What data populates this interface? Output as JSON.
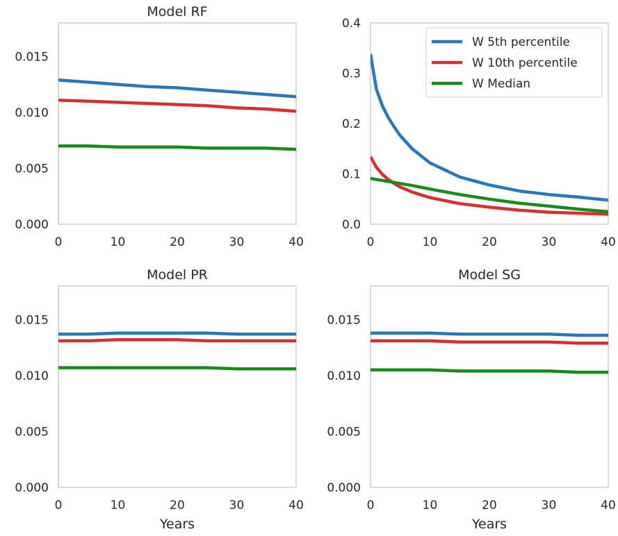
{
  "colors": {
    "w_5th": "#2878b5",
    "w_10th": "#d62f2f",
    "w_median": "#178a17"
  },
  "chart_data": [
    {
      "type": "line",
      "title": "Model RF",
      "xlabel": "",
      "ylabel": "",
      "xlim": [
        0,
        40
      ],
      "ylim": [
        0,
        0.018
      ],
      "xticks": [
        "0",
        "10",
        "20",
        "30",
        "40"
      ],
      "yticks": [
        "0.000",
        "0.005",
        "0.010",
        "0.015"
      ],
      "grid": false,
      "legend": null,
      "x": [
        0,
        5,
        10,
        15,
        20,
        25,
        30,
        35,
        40
      ],
      "series": [
        {
          "name": "W 5th percentile",
          "color": "#2878b5",
          "values": [
            0.0129,
            0.0127,
            0.0125,
            0.0123,
            0.0122,
            0.012,
            0.0118,
            0.0116,
            0.0114
          ]
        },
        {
          "name": "W 10th percentile",
          "color": "#d62f2f",
          "values": [
            0.0111,
            0.011,
            0.0109,
            0.0108,
            0.0107,
            0.0106,
            0.0104,
            0.0103,
            0.0101
          ]
        },
        {
          "name": "W Median",
          "color": "#178a17",
          "values": [
            0.007,
            0.007,
            0.0069,
            0.0069,
            0.0069,
            0.0068,
            0.0068,
            0.0068,
            0.0067
          ]
        }
      ]
    },
    {
      "type": "line",
      "title": "",
      "xlabel": "",
      "ylabel": "",
      "xlim": [
        0,
        40
      ],
      "ylim": [
        0,
        0.4
      ],
      "xticks": [
        "0",
        "10",
        "20",
        "30",
        "40"
      ],
      "yticks": [
        "0.0",
        "0.1",
        "0.2",
        "0.3",
        "0.4"
      ],
      "grid": false,
      "legend": "top-right",
      "x": [
        0,
        1,
        2,
        3,
        4,
        5,
        7,
        10,
        15,
        20,
        25,
        30,
        35,
        40
      ],
      "series": [
        {
          "name": "W 5th percentile",
          "color": "#2878b5",
          "values": [
            0.338,
            0.268,
            0.235,
            0.212,
            0.193,
            0.176,
            0.15,
            0.122,
            0.094,
            0.078,
            0.066,
            0.059,
            0.054,
            0.048
          ]
        },
        {
          "name": "W 10th percentile",
          "color": "#d62f2f",
          "values": [
            0.134,
            0.113,
            0.099,
            0.089,
            0.081,
            0.074,
            0.064,
            0.053,
            0.041,
            0.034,
            0.028,
            0.024,
            0.022,
            0.02
          ]
        },
        {
          "name": "W Median",
          "color": "#178a17",
          "values": [
            0.091,
            0.089,
            0.087,
            0.085,
            0.083,
            0.081,
            0.077,
            0.07,
            0.059,
            0.05,
            0.042,
            0.036,
            0.03,
            0.025
          ]
        }
      ]
    },
    {
      "type": "line",
      "title": "Model PR",
      "xlabel": "Years",
      "ylabel": "",
      "xlim": [
        0,
        40
      ],
      "ylim": [
        0,
        0.018
      ],
      "xticks": [
        "0",
        "10",
        "20",
        "30",
        "40"
      ],
      "yticks": [
        "0.000",
        "0.005",
        "0.010",
        "0.015"
      ],
      "grid": false,
      "legend": null,
      "x": [
        0,
        5,
        10,
        15,
        20,
        25,
        30,
        35,
        40
      ],
      "series": [
        {
          "name": "W 5th percentile",
          "color": "#2878b5",
          "values": [
            0.0137,
            0.0137,
            0.0138,
            0.0138,
            0.0138,
            0.0138,
            0.0137,
            0.0137,
            0.0137
          ]
        },
        {
          "name": "W 10th percentile",
          "color": "#d62f2f",
          "values": [
            0.0131,
            0.0131,
            0.0132,
            0.0132,
            0.0132,
            0.0131,
            0.0131,
            0.0131,
            0.0131
          ]
        },
        {
          "name": "W Median",
          "color": "#178a17",
          "values": [
            0.0107,
            0.0107,
            0.0107,
            0.0107,
            0.0107,
            0.0107,
            0.0106,
            0.0106,
            0.0106
          ]
        }
      ]
    },
    {
      "type": "line",
      "title": "Model SG",
      "xlabel": "Years",
      "ylabel": "",
      "xlim": [
        0,
        40
      ],
      "ylim": [
        0,
        0.018
      ],
      "xticks": [
        "0",
        "10",
        "20",
        "30",
        "40"
      ],
      "yticks": [
        "0.000",
        "0.005",
        "0.010",
        "0.015"
      ],
      "grid": false,
      "legend": null,
      "x": [
        0,
        5,
        10,
        15,
        20,
        25,
        30,
        35,
        40
      ],
      "series": [
        {
          "name": "W 5th percentile",
          "color": "#2878b5",
          "values": [
            0.0138,
            0.0138,
            0.0138,
            0.0137,
            0.0137,
            0.0137,
            0.0137,
            0.0136,
            0.0136
          ]
        },
        {
          "name": "W 10th percentile",
          "color": "#d62f2f",
          "values": [
            0.0131,
            0.0131,
            0.0131,
            0.013,
            0.013,
            0.013,
            0.013,
            0.0129,
            0.0129
          ]
        },
        {
          "name": "W Median",
          "color": "#178a17",
          "values": [
            0.0105,
            0.0105,
            0.0105,
            0.0104,
            0.0104,
            0.0104,
            0.0104,
            0.0103,
            0.0103
          ]
        }
      ]
    }
  ]
}
